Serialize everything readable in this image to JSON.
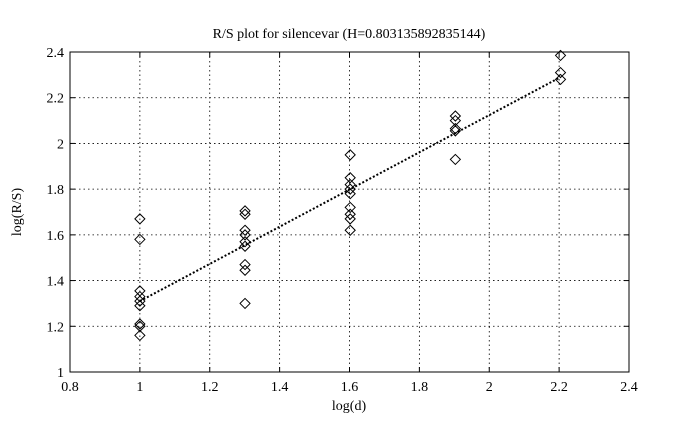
{
  "chart_data": {
    "type": "scatter",
    "title": "R/S plot for silencevar (H=0.803135892835144)",
    "xlabel": "log(d)",
    "ylabel": "log(R/S)",
    "xlim": [
      0.8,
      2.4
    ],
    "ylim": [
      1,
      2.4
    ],
    "xticks": [
      0.8,
      1,
      1.2,
      1.4,
      1.6,
      1.8,
      2,
      2.2,
      2.4
    ],
    "xtick_labels": [
      "0.8",
      "1",
      "1.2",
      "1.4",
      "1.6",
      "1.8",
      "2",
      "2.2",
      "2.4"
    ],
    "yticks": [
      1,
      1.2,
      1.4,
      1.6,
      1.8,
      2,
      2.2,
      2.4
    ],
    "ytick_labels": [
      "1",
      "1.2",
      "1.4",
      "1.6",
      "1.8",
      "2",
      "2.2",
      "2.4"
    ],
    "grid": true,
    "grid_style": "dotted",
    "marker": "diamond",
    "series": [
      {
        "kind": "points",
        "points": [
          {
            "x": 1.0,
            "y": 1.67
          },
          {
            "x": 1.0,
            "y": 1.58
          },
          {
            "x": 1.0,
            "y": 1.355
          },
          {
            "x": 1.0,
            "y": 1.33
          },
          {
            "x": 1.0,
            "y": 1.31
          },
          {
            "x": 1.0,
            "y": 1.29
          },
          {
            "x": 1.0,
            "y": 1.21
          },
          {
            "x": 1.0,
            "y": 1.2
          },
          {
            "x": 1.0,
            "y": 1.16
          },
          {
            "x": 1.301,
            "y": 1.705
          },
          {
            "x": 1.301,
            "y": 1.69
          },
          {
            "x": 1.301,
            "y": 1.62
          },
          {
            "x": 1.301,
            "y": 1.6
          },
          {
            "x": 1.301,
            "y": 1.57
          },
          {
            "x": 1.301,
            "y": 1.55
          },
          {
            "x": 1.301,
            "y": 1.47
          },
          {
            "x": 1.301,
            "y": 1.445
          },
          {
            "x": 1.301,
            "y": 1.3
          },
          {
            "x": 1.602,
            "y": 1.95
          },
          {
            "x": 1.602,
            "y": 1.85
          },
          {
            "x": 1.602,
            "y": 1.82
          },
          {
            "x": 1.602,
            "y": 1.8
          },
          {
            "x": 1.602,
            "y": 1.78
          },
          {
            "x": 1.602,
            "y": 1.72
          },
          {
            "x": 1.602,
            "y": 1.69
          },
          {
            "x": 1.602,
            "y": 1.67
          },
          {
            "x": 1.602,
            "y": 1.62
          },
          {
            "x": 1.903,
            "y": 2.12
          },
          {
            "x": 1.903,
            "y": 2.1
          },
          {
            "x": 1.903,
            "y": 2.065
          },
          {
            "x": 1.903,
            "y": 2.055
          },
          {
            "x": 1.903,
            "y": 1.93
          },
          {
            "x": 2.204,
            "y": 2.385
          },
          {
            "x": 2.204,
            "y": 2.31
          },
          {
            "x": 2.204,
            "y": 2.28
          }
        ]
      },
      {
        "kind": "fit-line",
        "style": "dotted",
        "x": [
          1.0,
          2.204
        ],
        "y": [
          1.31,
          2.29
        ]
      }
    ]
  }
}
